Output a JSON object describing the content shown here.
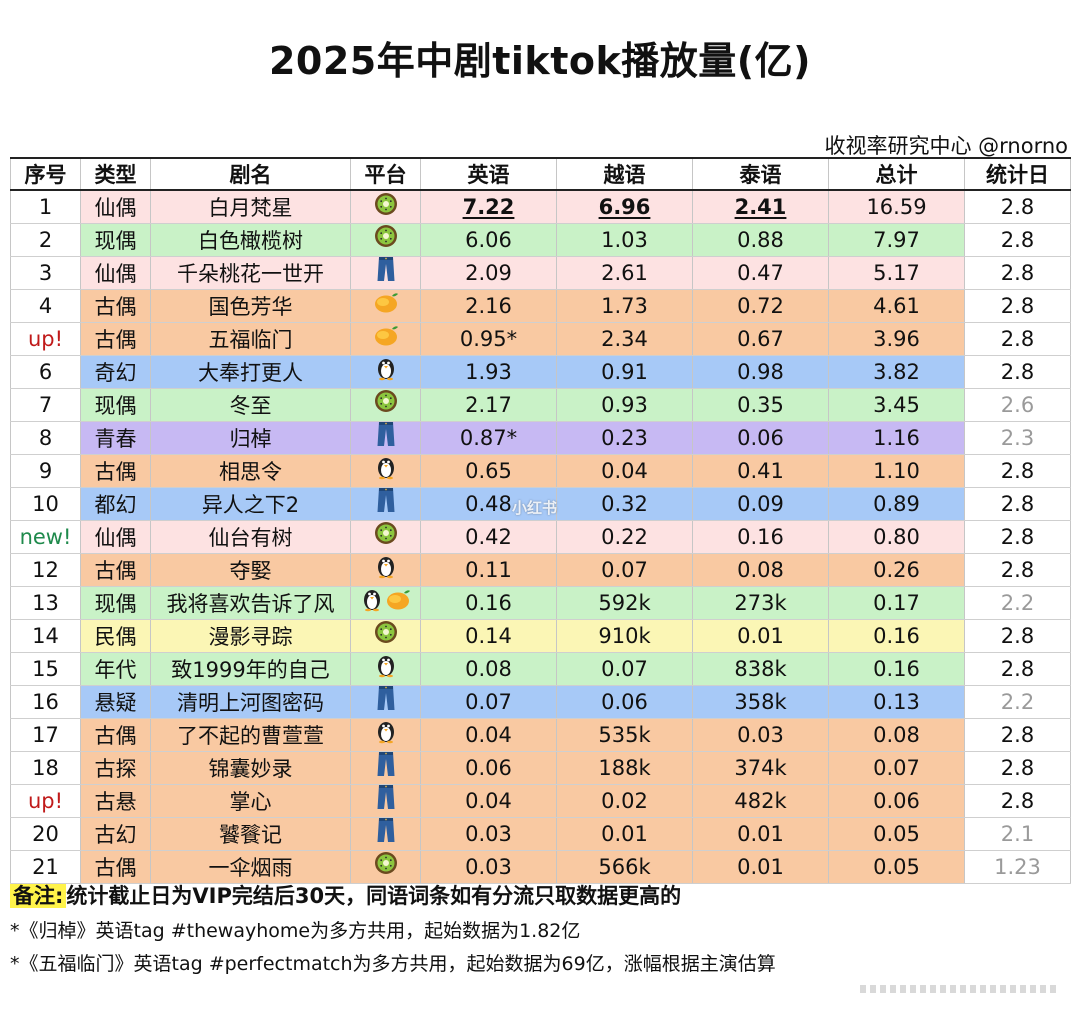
{
  "chart_data": {
    "type": "table",
    "title": "2025年中剧tiktok播放量(亿)",
    "source": "收视率研究中心 @rnorno",
    "columns": [
      "序号",
      "类型",
      "剧名",
      "平台",
      "英语",
      "越语",
      "泰语",
      "总计",
      "统计日"
    ],
    "rows": [
      {
        "rank": "1",
        "genre": "仙偶",
        "title": "白月梵星",
        "platforms": [
          "kiwi"
        ],
        "english": "7.22",
        "vietnamese": "6.96",
        "thai": "2.41",
        "total": "16.59",
        "date": "2.8",
        "bold": [
          "english",
          "vietnamese",
          "thai"
        ]
      },
      {
        "rank": "2",
        "genre": "现偶",
        "title": "白色橄榄树",
        "platforms": [
          "kiwi"
        ],
        "english": "6.06",
        "vietnamese": "1.03",
        "thai": "0.88",
        "total": "7.97",
        "date": "2.8"
      },
      {
        "rank": "3",
        "genre": "仙偶",
        "title": "千朵桃花一世开",
        "platforms": [
          "jeans"
        ],
        "english": "2.09",
        "vietnamese": "2.61",
        "thai": "0.47",
        "total": "5.17",
        "date": "2.8"
      },
      {
        "rank": "4",
        "genre": "古偶",
        "title": "国色芳华",
        "platforms": [
          "mango"
        ],
        "english": "2.16",
        "vietnamese": "1.73",
        "thai": "0.72",
        "total": "4.61",
        "date": "2.8"
      },
      {
        "rank": "up!",
        "genre": "古偶",
        "title": "五福临门",
        "platforms": [
          "mango"
        ],
        "english": "0.95*",
        "vietnamese": "2.34",
        "thai": "0.67",
        "total": "3.96",
        "date": "2.8"
      },
      {
        "rank": "6",
        "genre": "奇幻",
        "title": "大奉打更人",
        "platforms": [
          "penguin"
        ],
        "english": "1.93",
        "vietnamese": "0.91",
        "thai": "0.98",
        "total": "3.82",
        "date": "2.8"
      },
      {
        "rank": "7",
        "genre": "现偶",
        "title": "冬至",
        "platforms": [
          "kiwi"
        ],
        "english": "2.17",
        "vietnamese": "0.93",
        "thai": "0.35",
        "total": "3.45",
        "date": "2.6"
      },
      {
        "rank": "8",
        "genre": "青春",
        "title": "归棹",
        "platforms": [
          "jeans"
        ],
        "english": "0.87*",
        "vietnamese": "0.23",
        "thai": "0.06",
        "total": "1.16",
        "date": "2.3"
      },
      {
        "rank": "9",
        "genre": "古偶",
        "title": "相思令",
        "platforms": [
          "penguin"
        ],
        "english": "0.65",
        "vietnamese": "0.04",
        "thai": "0.41",
        "total": "1.10",
        "date": "2.8"
      },
      {
        "rank": "10",
        "genre": "都幻",
        "title": "异人之下2",
        "platforms": [
          "jeans"
        ],
        "english": "0.48",
        "vietnamese": "0.32",
        "thai": "0.09",
        "total": "0.89",
        "date": "2.8"
      },
      {
        "rank": "new!",
        "genre": "仙偶",
        "title": "仙台有树",
        "platforms": [
          "kiwi"
        ],
        "english": "0.42",
        "vietnamese": "0.22",
        "thai": "0.16",
        "total": "0.80",
        "date": "2.8"
      },
      {
        "rank": "12",
        "genre": "古偶",
        "title": "夺婜",
        "platforms": [
          "penguin"
        ],
        "english": "0.11",
        "vietnamese": "0.07",
        "thai": "0.08",
        "total": "0.26",
        "date": "2.8"
      },
      {
        "rank": "13",
        "genre": "现偶",
        "title": "我将喜欢告诉了风",
        "platforms": [
          "penguin",
          "mango"
        ],
        "english": "0.16",
        "vietnamese": "592k",
        "thai": "273k",
        "total": "0.17",
        "date": "2.2"
      },
      {
        "rank": "14",
        "genre": "民偶",
        "title": "漫影寻踪",
        "platforms": [
          "kiwi"
        ],
        "english": "0.14",
        "vietnamese": "910k",
        "thai": "0.01",
        "total": "0.16",
        "date": "2.8"
      },
      {
        "rank": "15",
        "genre": "年代",
        "title": "致1999年的自己",
        "platforms": [
          "penguin"
        ],
        "english": "0.08",
        "vietnamese": "0.07",
        "thai": "838k",
        "total": "0.16",
        "date": "2.8"
      },
      {
        "rank": "16",
        "genre": "悬疑",
        "title": "清明上河图密码",
        "platforms": [
          "jeans"
        ],
        "english": "0.07",
        "vietnamese": "0.06",
        "thai": "358k",
        "total": "0.13",
        "date": "2.2"
      },
      {
        "rank": "17",
        "genre": "古偶",
        "title": "了不起的曹萱萱",
        "platforms": [
          "penguin"
        ],
        "english": "0.04",
        "vietnamese": "535k",
        "thai": "0.03",
        "total": "0.08",
        "date": "2.8"
      },
      {
        "rank": "18",
        "genre": "古探",
        "title": "锦囊妙录",
        "platforms": [
          "jeans"
        ],
        "english": "0.06",
        "vietnamese": "188k",
        "thai": "374k",
        "total": "0.07",
        "date": "2.8"
      },
      {
        "rank": "up!",
        "genre": "古悬",
        "title": "掌心",
        "platforms": [
          "jeans"
        ],
        "english": "0.04",
        "vietnamese": "0.02",
        "thai": "482k",
        "total": "0.06",
        "date": "2.8"
      },
      {
        "rank": "20",
        "genre": "古幻",
        "title": "饕餮记",
        "platforms": [
          "jeans"
        ],
        "english": "0.03",
        "vietnamese": "0.01",
        "thai": "0.01",
        "total": "0.05",
        "date": "2.1"
      },
      {
        "rank": "21",
        "genre": "古偶",
        "title": "一伞烟雨",
        "platforms": [
          "kiwi"
        ],
        "english": "0.03",
        "vietnamese": "566k",
        "thai": "0.01",
        "total": "0.05",
        "date": "1.23"
      }
    ]
  },
  "notes": {
    "label": "备注:",
    "main": "统计截止日为VIP完结后30天，同语词条如有分流只取数据更高的",
    "note1": "*《归棹》英语tag #thewayhome为多方共用，起始数据为1.82亿",
    "note2": "*《五福临门》英语tag #perfectmatch为多方共用，起始数据为69亿，涨幅根据主演估算"
  },
  "watermark": "小红书",
  "colors": {
    "genre_bg": {
      "仙偶": "#fde2e2",
      "现偶": "#c9f2c7",
      "古偶": "#f9c9a2",
      "奇幻": "#a7c9f7",
      "青春": "#c7b9f3",
      "都幻": "#a7c9f7",
      "民偶": "#fbf6b5",
      "年代": "#c9f2c7",
      "悬疑": "#a7c9f7",
      "古探": "#f9c9a2",
      "古悬": "#f9c9a2",
      "古幻": "#f9c9a2"
    },
    "rank_up": "#c01a1a",
    "rank_new": "#1f8a4c",
    "date_dim": "#9a9a9a",
    "note_highlight": "#fff34a"
  },
  "platform_icons": {
    "kiwi": "kiwi-icon",
    "mango": "mango-icon",
    "penguin": "penguin-icon",
    "jeans": "jeans-icon"
  }
}
